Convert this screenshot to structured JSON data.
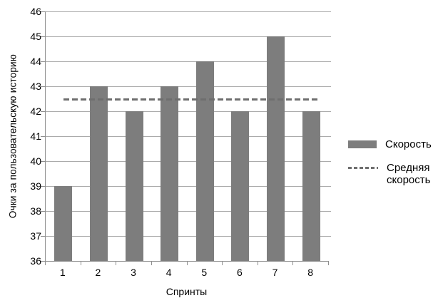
{
  "chart_data": {
    "type": "bar",
    "title": "",
    "categories": [
      "1",
      "2",
      "3",
      "4",
      "5",
      "6",
      "7",
      "8"
    ],
    "series": [
      {
        "name": "Скорость",
        "values": [
          39,
          43,
          42,
          43,
          44,
          42,
          45,
          42
        ]
      }
    ],
    "average_line": {
      "name": "Средняя скорость",
      "value": 42.5
    },
    "xlabel": "Спринты",
    "ylabel": "Очки за пользовательскую историю",
    "ylim": [
      36,
      46
    ],
    "ytick_step": 1,
    "grid": true,
    "legend_position": "right",
    "legend": [
      {
        "label": "Скорость",
        "swatch": "bar"
      },
      {
        "label": "Средняя скорость",
        "swatch": "dashed-line"
      }
    ],
    "colors": {
      "bar": "#7d7d7d",
      "grid": "#ababab",
      "axis": "#8f8f8f",
      "average_line": "#6e6e6e",
      "text": "#000000",
      "background": "#ffffff"
    }
  }
}
